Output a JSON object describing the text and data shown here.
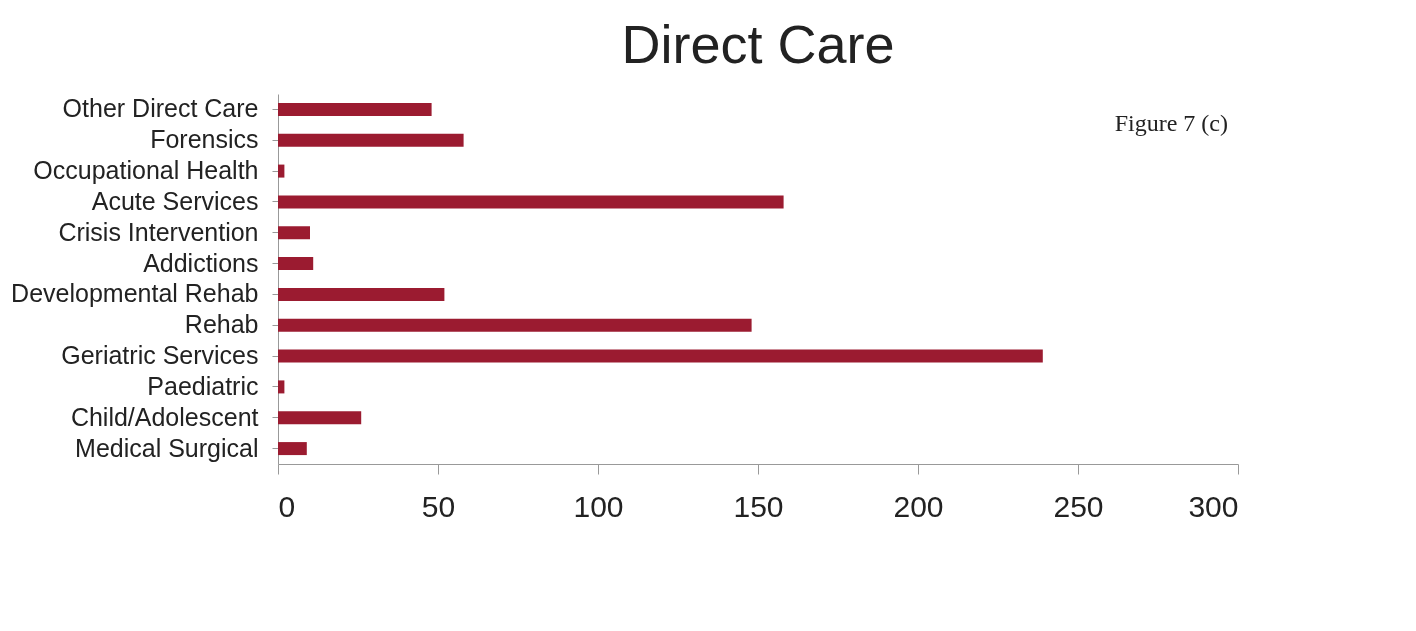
{
  "chart_data": {
    "type": "bar",
    "orientation": "horizontal",
    "title": "Direct Care",
    "categories": [
      "Other Direct Care",
      "Forensics",
      "Occupational Health",
      "Acute Services",
      "Crisis Intervention",
      "Addictions",
      "Developmental Rehab",
      "Rehab",
      "Geriatric Services",
      "Paediatric",
      "Child/Adolescent",
      "Medical Surgical"
    ],
    "values": [
      48,
      58,
      2,
      158,
      10,
      11,
      52,
      148,
      239,
      2,
      26,
      9
    ],
    "color": "#9b1b30",
    "xlim": [
      0,
      300
    ],
    "xticks": [
      0,
      50,
      100,
      150,
      200,
      250,
      300
    ],
    "grid": false,
    "annotations": [
      "Figure 7 (c)"
    ]
  }
}
